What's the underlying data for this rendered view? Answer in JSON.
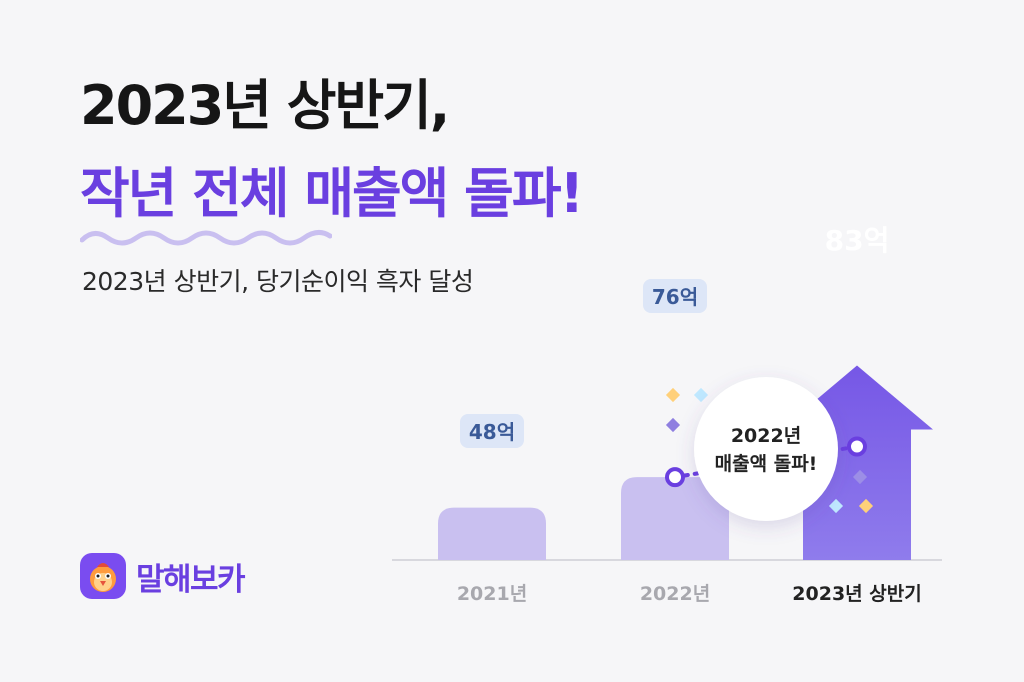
{
  "headline": {
    "line1": "2023년 상반기,",
    "line2": "작년 전체 매출액 돌파!"
  },
  "subtitle": "2023년 상반기, 당기순이익 흑자 달성",
  "brand": {
    "name": "말해보카",
    "icon": "parrot-mascot-icon"
  },
  "callout": {
    "line1": "2022년",
    "line2": "매출액 돌파!"
  },
  "colors": {
    "accent": "#6a3fe0",
    "bar_light": "#c9c0f0",
    "bar_highlight": "#8a72ea",
    "arrow_top": "#7759e6",
    "label_bg": "#dde6f7",
    "label_text": "#3a5a98"
  },
  "chart_data": {
    "type": "bar",
    "categories": [
      "2021년",
      "2022년",
      "2023년 상반기"
    ],
    "values": [
      48,
      76,
      83
    ],
    "value_labels": [
      "48억",
      "76억",
      "83억"
    ],
    "highlight_index": 2,
    "trend_line": {
      "from_index": 1,
      "to_index": 2,
      "style": "dotted"
    },
    "title": "",
    "xlabel": "",
    "ylabel": ""
  }
}
